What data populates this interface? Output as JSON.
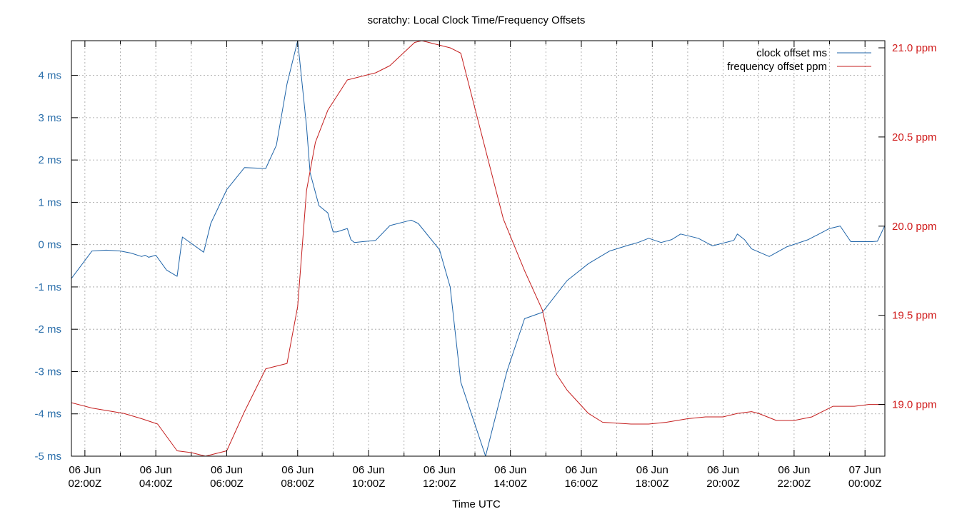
{
  "chart_data": {
    "type": "line",
    "title": "scratchy: Local Clock Time/Frequency Offsets",
    "xlabel": "Time UTC",
    "x_range_hours": [
      1.62,
      24.56
    ],
    "x_ticks": [
      {
        "hour": 2,
        "line1": "06 Jun",
        "line2": "02:00Z"
      },
      {
        "hour": 4,
        "line1": "06 Jun",
        "line2": "04:00Z"
      },
      {
        "hour": 6,
        "line1": "06 Jun",
        "line2": "06:00Z"
      },
      {
        "hour": 8,
        "line1": "06 Jun",
        "line2": "08:00Z"
      },
      {
        "hour": 10,
        "line1": "06 Jun",
        "line2": "10:00Z"
      },
      {
        "hour": 12,
        "line1": "06 Jun",
        "line2": "12:00Z"
      },
      {
        "hour": 14,
        "line1": "06 Jun",
        "line2": "14:00Z"
      },
      {
        "hour": 16,
        "line1": "06 Jun",
        "line2": "16:00Z"
      },
      {
        "hour": 18,
        "line1": "06 Jun",
        "line2": "18:00Z"
      },
      {
        "hour": 20,
        "line1": "06 Jun",
        "line2": "20:00Z"
      },
      {
        "hour": 22,
        "line1": "06 Jun",
        "line2": "22:00Z"
      },
      {
        "hour": 24,
        "line1": "07 Jun",
        "line2": "00:00Z"
      }
    ],
    "y_left": {
      "range": [
        -5,
        4.82
      ],
      "ticks": [
        {
          "value": 4,
          "label": "4 ms"
        },
        {
          "value": 3,
          "label": "3 ms"
        },
        {
          "value": 2,
          "label": "2 ms"
        },
        {
          "value": 1,
          "label": "1 ms"
        },
        {
          "value": 0,
          "label": "0 ms"
        },
        {
          "value": -1,
          "label": "-1 ms"
        },
        {
          "value": -2,
          "label": "-2 ms"
        },
        {
          "value": -3,
          "label": "-3 ms"
        },
        {
          "value": -4,
          "label": "-4 ms"
        },
        {
          "value": -5,
          "label": "-5 ms"
        }
      ],
      "color": "#2a6eaa"
    },
    "y_right": {
      "range": [
        18.71,
        21.04
      ],
      "ticks": [
        {
          "value": 21.0,
          "label": "21.0 ppm"
        },
        {
          "value": 20.5,
          "label": "20.5 ppm"
        },
        {
          "value": 20.0,
          "label": "20.0 ppm"
        },
        {
          "value": 19.5,
          "label": "19.5 ppm"
        },
        {
          "value": 19.0,
          "label": "19.0 ppm"
        }
      ],
      "color": "#d01c1c"
    },
    "grid": true,
    "legend_position": "top-right",
    "series": [
      {
        "name": "clock offset ms",
        "axis": "left",
        "color": "#1f64a8",
        "points": [
          [
            1.62,
            -0.8
          ],
          [
            2.2,
            -0.15
          ],
          [
            2.6,
            -0.13
          ],
          [
            3.0,
            -0.15
          ],
          [
            3.3,
            -0.2
          ],
          [
            3.6,
            -0.28
          ],
          [
            3.7,
            -0.25
          ],
          [
            3.8,
            -0.3
          ],
          [
            4.0,
            -0.25
          ],
          [
            4.3,
            -0.6
          ],
          [
            4.6,
            -0.75
          ],
          [
            4.75,
            0.18
          ],
          [
            5.35,
            -0.18
          ],
          [
            5.55,
            0.5
          ],
          [
            6.0,
            1.3
          ],
          [
            6.5,
            1.82
          ],
          [
            7.1,
            1.8
          ],
          [
            7.4,
            2.35
          ],
          [
            7.7,
            3.8
          ],
          [
            8.0,
            4.82
          ],
          [
            8.25,
            2.8
          ],
          [
            8.35,
            1.7
          ],
          [
            8.6,
            0.92
          ],
          [
            8.85,
            0.75
          ],
          [
            9.0,
            0.3
          ],
          [
            9.1,
            0.3
          ],
          [
            9.4,
            0.38
          ],
          [
            9.5,
            0.12
          ],
          [
            9.6,
            0.05
          ],
          [
            10.2,
            0.1
          ],
          [
            10.6,
            0.45
          ],
          [
            11.2,
            0.58
          ],
          [
            11.4,
            0.5
          ],
          [
            12.0,
            -0.12
          ],
          [
            12.3,
            -1.0
          ],
          [
            12.6,
            -3.25
          ],
          [
            13.3,
            -5.0
          ],
          [
            13.9,
            -3.0
          ],
          [
            14.4,
            -1.75
          ],
          [
            14.9,
            -1.6
          ],
          [
            15.6,
            -0.85
          ],
          [
            16.2,
            -0.45
          ],
          [
            16.8,
            -0.15
          ],
          [
            17.3,
            -0.02
          ],
          [
            17.6,
            0.05
          ],
          [
            17.9,
            0.15
          ],
          [
            18.25,
            0.05
          ],
          [
            18.55,
            0.12
          ],
          [
            18.8,
            0.25
          ],
          [
            19.3,
            0.15
          ],
          [
            19.7,
            -0.03
          ],
          [
            20.3,
            0.1
          ],
          [
            20.4,
            0.25
          ],
          [
            20.6,
            0.12
          ],
          [
            20.8,
            -0.1
          ],
          [
            21.3,
            -0.28
          ],
          [
            21.8,
            -0.05
          ],
          [
            22.4,
            0.12
          ],
          [
            23.0,
            0.38
          ],
          [
            23.3,
            0.44
          ],
          [
            23.6,
            0.07
          ],
          [
            23.9,
            0.07
          ],
          [
            24.2,
            0.07
          ],
          [
            24.35,
            0.08
          ],
          [
            24.56,
            0.45
          ]
        ]
      },
      {
        "name": "frequency offset ppm",
        "axis": "right",
        "color": "#c41e1e",
        "points": [
          [
            1.62,
            19.01
          ],
          [
            2.2,
            18.98
          ],
          [
            3.1,
            18.95
          ],
          [
            3.6,
            18.92
          ],
          [
            4.05,
            18.89
          ],
          [
            4.6,
            18.74
          ],
          [
            5.0,
            18.73
          ],
          [
            5.4,
            18.71
          ],
          [
            6.0,
            18.74
          ],
          [
            6.5,
            18.96
          ],
          [
            7.1,
            19.2
          ],
          [
            7.3,
            19.21
          ],
          [
            7.7,
            19.23
          ],
          [
            8.0,
            19.55
          ],
          [
            8.25,
            20.2
          ],
          [
            8.5,
            20.47
          ],
          [
            8.85,
            20.65
          ],
          [
            9.4,
            20.82
          ],
          [
            10.2,
            20.86
          ],
          [
            10.6,
            20.9
          ],
          [
            11.3,
            21.03
          ],
          [
            11.5,
            21.04
          ],
          [
            12.3,
            21.0
          ],
          [
            12.6,
            20.97
          ],
          [
            13.4,
            20.35
          ],
          [
            13.8,
            20.04
          ],
          [
            14.4,
            19.75
          ],
          [
            14.9,
            19.53
          ],
          [
            15.3,
            19.17
          ],
          [
            15.6,
            19.08
          ],
          [
            16.2,
            18.95
          ],
          [
            16.6,
            18.9
          ],
          [
            17.4,
            18.89
          ],
          [
            17.9,
            18.89
          ],
          [
            18.4,
            18.9
          ],
          [
            19.0,
            18.92
          ],
          [
            19.5,
            18.93
          ],
          [
            20.0,
            18.93
          ],
          [
            20.4,
            18.95
          ],
          [
            20.8,
            18.96
          ],
          [
            21.0,
            18.95
          ],
          [
            21.5,
            18.91
          ],
          [
            22.0,
            18.91
          ],
          [
            22.5,
            18.93
          ],
          [
            23.1,
            18.99
          ],
          [
            23.7,
            18.99
          ],
          [
            24.1,
            19.0
          ],
          [
            24.56,
            19.0
          ]
        ]
      }
    ]
  }
}
